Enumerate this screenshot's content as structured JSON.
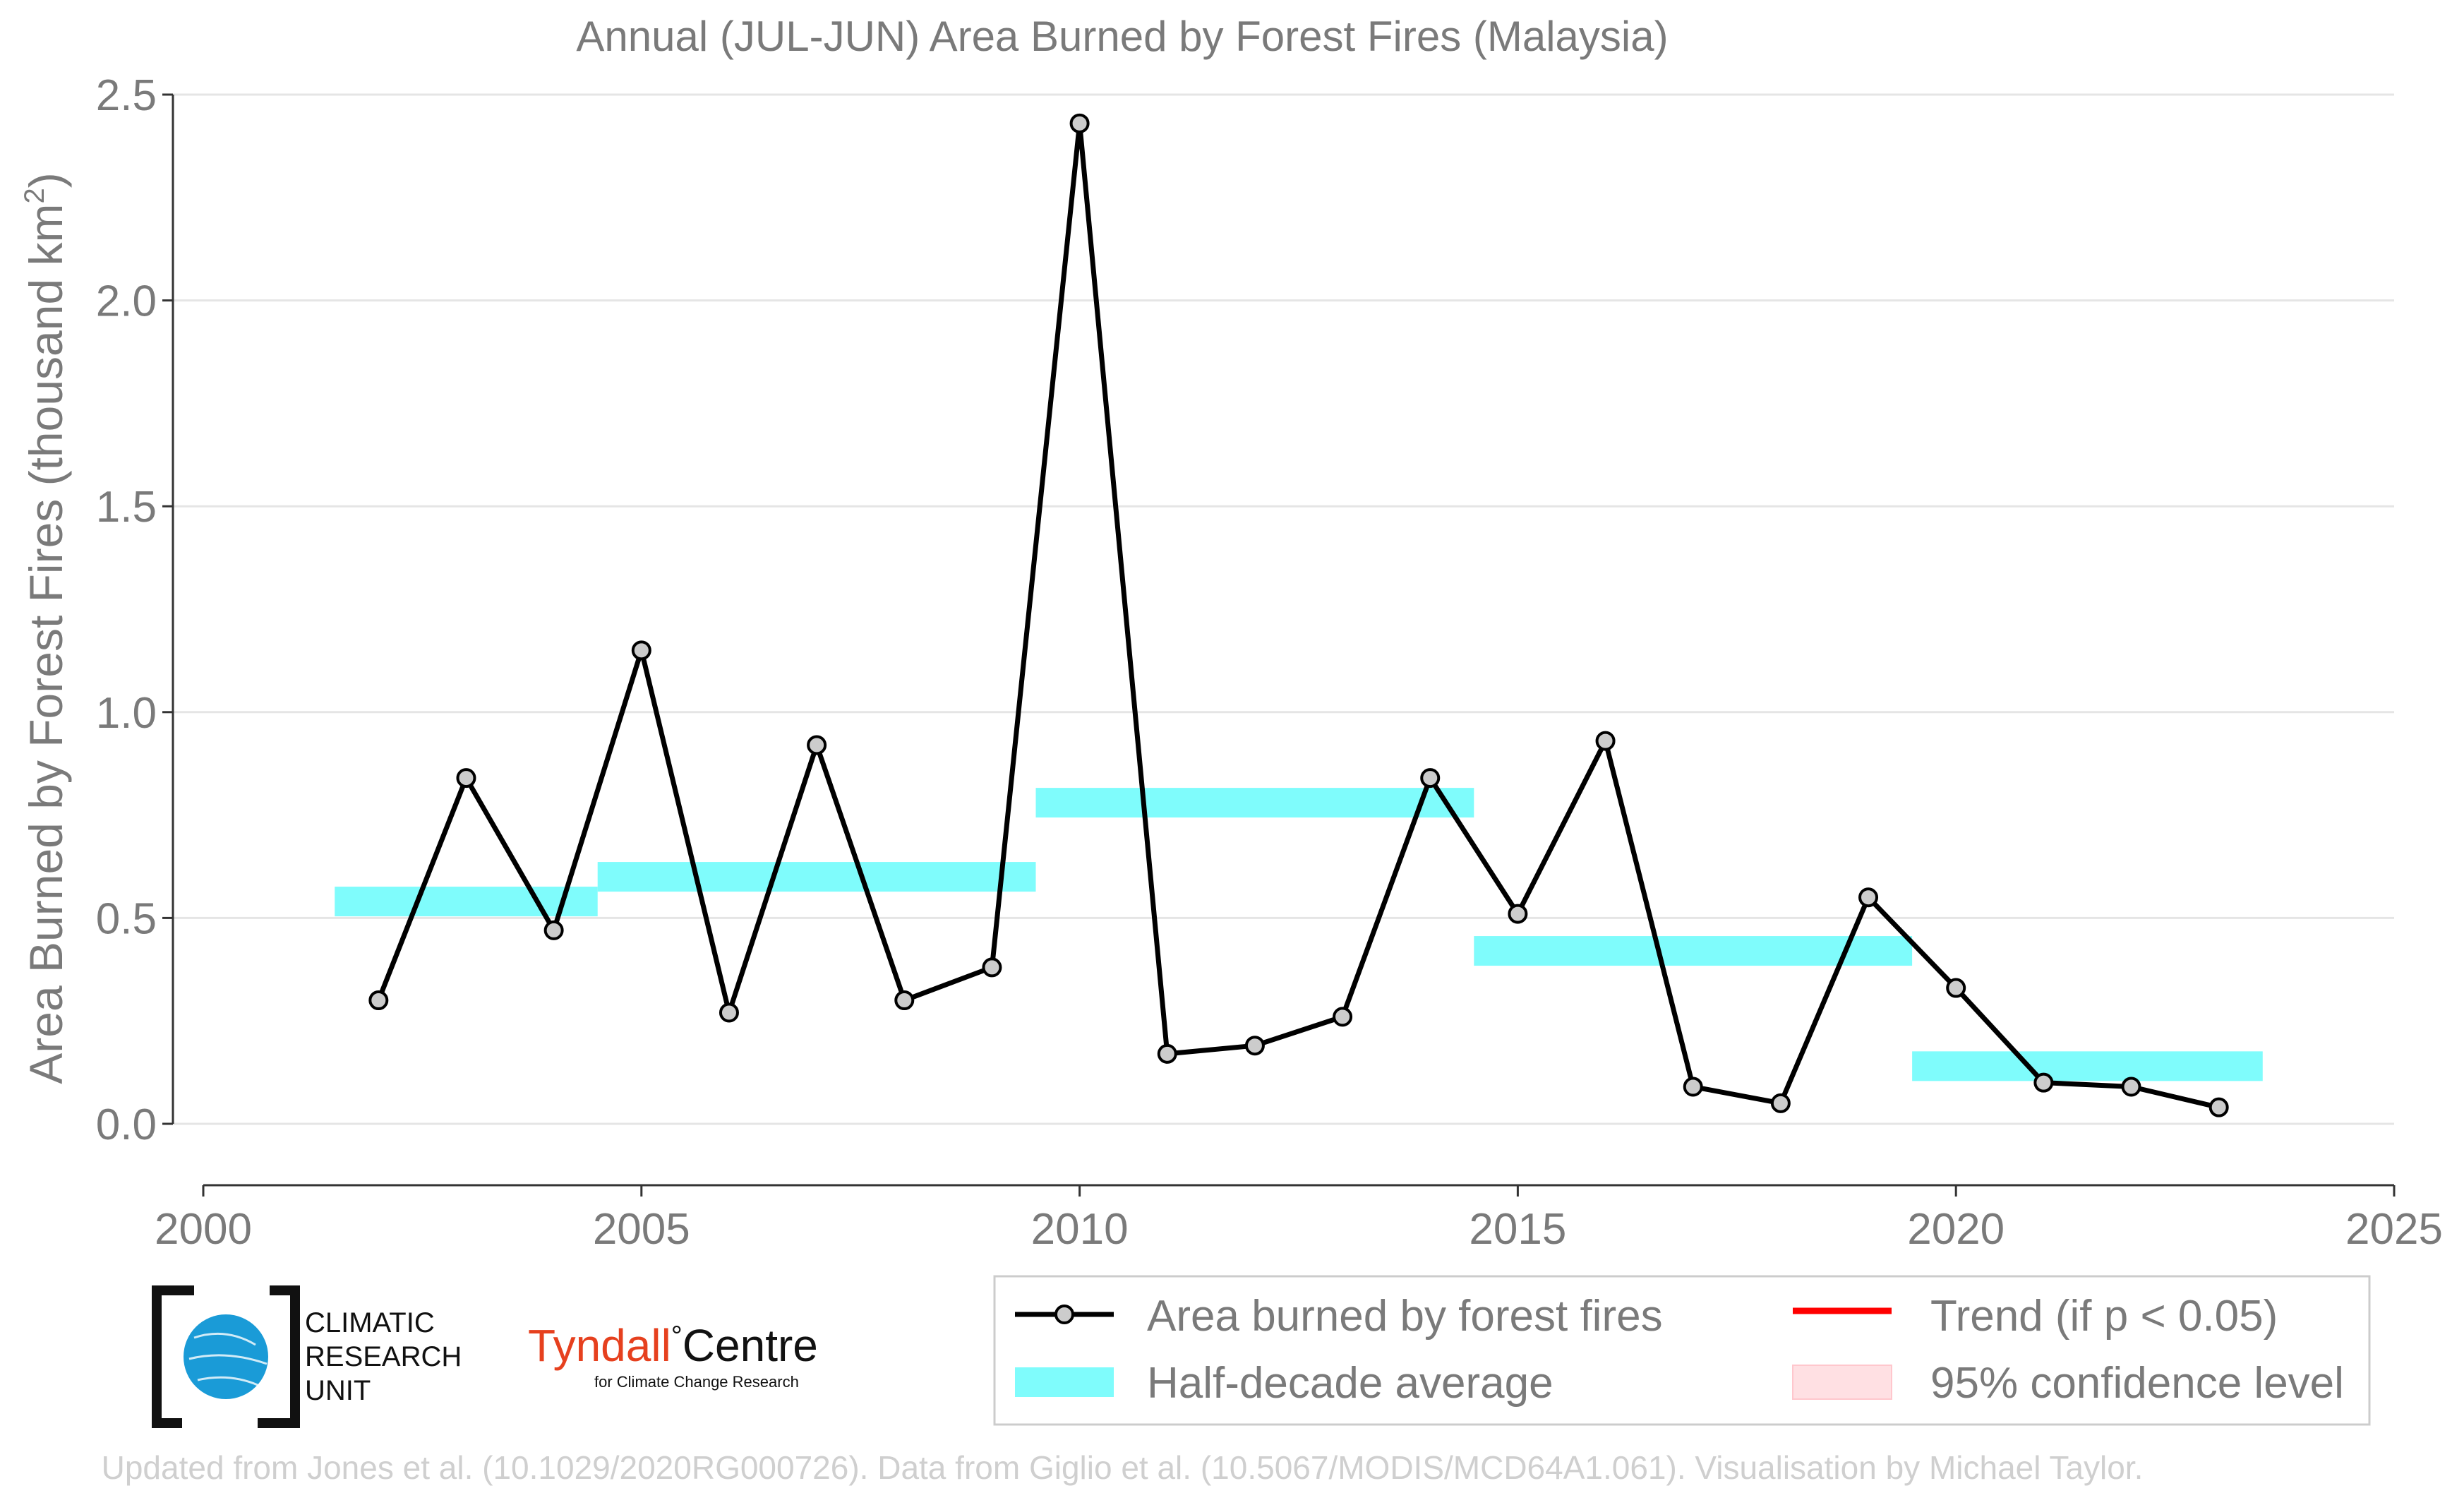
{
  "chart_data": {
    "type": "line",
    "title": "Annual (JUL-JUN) Area Burned by Forest Fires (Malaysia)",
    "xlabel": "",
    "ylabel": "Area Burned by Forest Fires (thousand km",
    "ylabel_superscript": "2",
    "ylabel_close": ")",
    "xlim": [
      2000,
      2025
    ],
    "ylim": [
      0,
      2.5
    ],
    "x_ticks": [
      2000,
      2005,
      2010,
      2015,
      2020,
      2025
    ],
    "y_ticks": [
      0.0,
      0.5,
      1.0,
      1.5,
      2.0,
      2.5
    ],
    "y_tick_labels": [
      "0.0",
      "0.5",
      "1.0",
      "1.5",
      "2.0",
      "2.5"
    ],
    "grid": "horizontal",
    "series": [
      {
        "name": "Area burned by forest fires",
        "x": [
          2002,
          2003,
          2004,
          2005,
          2006,
          2007,
          2008,
          2009,
          2010,
          2011,
          2012,
          2013,
          2014,
          2015,
          2016,
          2017,
          2018,
          2019,
          2020,
          2021,
          2022,
          2023
        ],
        "y": [
          0.3,
          0.84,
          0.47,
          1.15,
          0.27,
          0.92,
          0.3,
          0.38,
          2.43,
          0.17,
          0.19,
          0.26,
          0.84,
          0.51,
          0.93,
          0.09,
          0.05,
          0.55,
          0.33,
          0.1,
          0.09,
          0.04
        ]
      }
    ],
    "half_decade_average": {
      "name": "Half-decade average",
      "segments": [
        {
          "x_start": 2001.5,
          "x_end": 2004.5,
          "y": 0.54
        },
        {
          "x_start": 2004.5,
          "x_end": 2009.5,
          "y": 0.6
        },
        {
          "x_start": 2009.5,
          "x_end": 2014.5,
          "y": 0.78
        },
        {
          "x_start": 2014.5,
          "x_end": 2019.5,
          "y": 0.42
        },
        {
          "x_start": 2019.5,
          "x_end": 2023.5,
          "y": 0.14
        }
      ]
    },
    "legend": {
      "placement": "bottom-right",
      "entries": [
        {
          "label": "Area burned by forest fires",
          "kind": "line-marker",
          "color": "#000000"
        },
        {
          "label": "Trend (if p < 0.05)",
          "kind": "line",
          "color": "#ff0000"
        },
        {
          "label": "Half-decade average",
          "kind": "band",
          "color": "#7ffcfc"
        },
        {
          "label": "95% confidence level",
          "kind": "band",
          "color": "#ffe0e3"
        }
      ]
    },
    "footer": "Updated from Jones et al. (10.1029/2020RG000726). Data from Giglio et al. (10.5067/MODIS/MCD64A1.061). Visualisation by Michael Taylor."
  },
  "logos": {
    "cru_lines": [
      "CLIMATIC",
      "RESEARCH",
      "UNIT"
    ],
    "tyndall_name_1": "Tyndall",
    "tyndall_degree": "°",
    "tyndall_name_2": "Centre",
    "tyndall_tagline": "for Climate Change Research"
  },
  "colors": {
    "line": "#000000",
    "marker_fill": "#cccccc",
    "band": "#7ffcfc",
    "trend": "#ff0000",
    "confidence": "#ffe0e3",
    "grid": "#e5e5e5",
    "text": "#7a7a7a",
    "footer": "#cfcfcf",
    "tyndall_red": "#e6401e",
    "cru_blue": "#1a9bd7"
  }
}
